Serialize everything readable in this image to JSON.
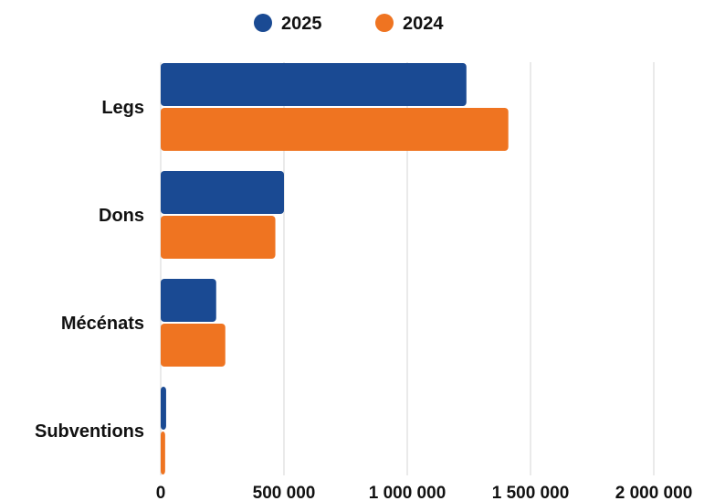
{
  "chart_data": {
    "type": "bar",
    "orientation": "horizontal",
    "categories": [
      "Legs",
      "Dons",
      "Mécénats",
      "Subventions"
    ],
    "series": [
      {
        "name": "2025",
        "color": "#1a4a93",
        "values": [
          1240000,
          500000,
          225000,
          22000
        ]
      },
      {
        "name": "2024",
        "color": "#ef7421",
        "values": [
          1410000,
          465000,
          262000,
          18000
        ]
      }
    ],
    "title": "",
    "xlabel": "",
    "ylabel": "",
    "xlim": [
      0,
      2000000
    ],
    "x_ticks": [
      0,
      500000,
      1000000,
      1500000,
      2000000
    ],
    "x_tick_labels": [
      "0",
      "500 000",
      "1 000 000",
      "1 500 000",
      "2 000 000"
    ],
    "grid": "vertical",
    "legend_position": "top-center"
  }
}
